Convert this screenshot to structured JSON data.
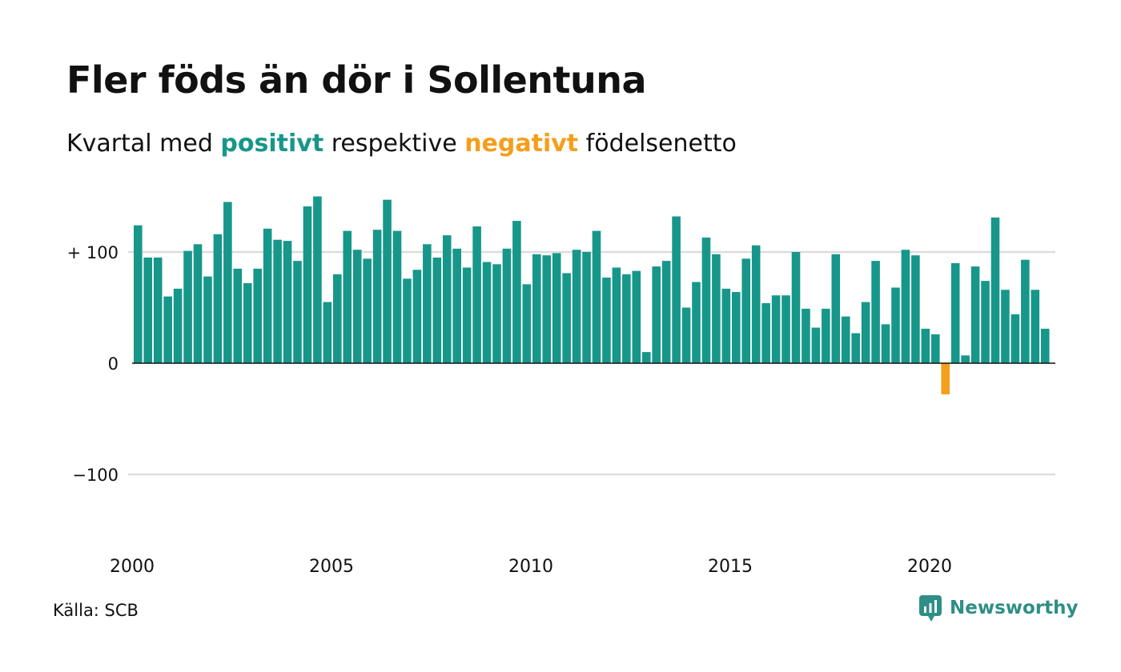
{
  "title": "Fler föds än dör i Sollentuna",
  "subtitle": {
    "prefix": "Kvartal med ",
    "positive": "positivt",
    "middle": " respektive ",
    "negative": "negativt",
    "suffix": " födelsenetto"
  },
  "source": "Källa: SCB",
  "brand": {
    "name": "Newsworthy",
    "icon": "newsworthy-chart-icon"
  },
  "colors": {
    "positive": "#17978a",
    "negative": "#f59e1c",
    "grid": "#dddddd",
    "text": "#111111",
    "brand": "#2f8f86"
  },
  "chart_data": {
    "type": "bar",
    "grid": true,
    "ylim": [
      -160,
      150
    ],
    "yticks": [
      {
        "value": 100,
        "label": "+ 100"
      },
      {
        "value": 0,
        "label": "0"
      },
      {
        "value": -100,
        "label": "−100"
      }
    ],
    "xticks": [
      {
        "value": 2000,
        "label": "2000"
      },
      {
        "value": 2005,
        "label": "2005"
      },
      {
        "value": 2010,
        "label": "2010"
      },
      {
        "value": 2015,
        "label": "2015"
      },
      {
        "value": 2020,
        "label": "2020"
      }
    ],
    "start_year": 2000,
    "values": [
      124,
      95,
      95,
      60,
      67,
      101,
      107,
      78,
      116,
      145,
      85,
      72,
      85,
      121,
      111,
      110,
      92,
      141,
      150,
      55,
      80,
      119,
      102,
      94,
      120,
      147,
      119,
      76,
      84,
      107,
      95,
      115,
      103,
      86,
      123,
      91,
      89,
      103,
      128,
      71,
      98,
      97,
      99,
      81,
      102,
      100,
      119,
      77,
      86,
      80,
      83,
      10,
      87,
      92,
      132,
      50,
      73,
      113,
      98,
      67,
      64,
      94,
      106,
      54,
      61,
      61,
      100,
      49,
      32,
      49,
      98,
      42,
      27,
      55,
      92,
      35,
      68,
      102,
      97,
      31,
      26,
      -28,
      90,
      7,
      87,
      74,
      131,
      66,
      44,
      93,
      66,
      31
    ]
  }
}
